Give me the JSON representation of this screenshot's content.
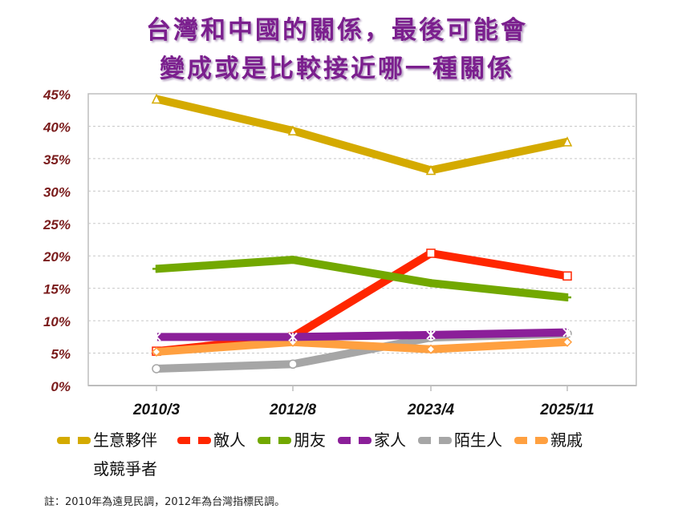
{
  "chart_data": {
    "type": "line",
    "title_line1": "台灣和中國的關係，最後可能會",
    "title_line2": "變成或是比較接近哪一種關係",
    "categories": [
      "2010/3",
      "2012/8",
      "2023/4",
      "2025/11"
    ],
    "ylim": [
      0,
      45
    ],
    "yticks": [
      "0%",
      "5%",
      "10%",
      "15%",
      "20%",
      "25%",
      "30%",
      "35%",
      "40%",
      "45%"
    ],
    "grid": true,
    "legend_position": "bottom",
    "series": [
      {
        "name": "生意夥伴或競爭者",
        "color": "#d4aa00",
        "marker": "triangle",
        "values": [
          44.2,
          39.3,
          33.2,
          37.6
        ]
      },
      {
        "name": "敵人",
        "color": "#ff2600",
        "marker": "square",
        "values": [
          5.3,
          7.5,
          20.4,
          16.9
        ]
      },
      {
        "name": "朋友",
        "color": "#72a800",
        "marker": "plus",
        "values": [
          18.0,
          19.4,
          15.8,
          13.6
        ]
      },
      {
        "name": "家人",
        "color": "#8b1f99",
        "marker": "x",
        "values": [
          7.5,
          7.5,
          7.8,
          8.2
        ]
      },
      {
        "name": "陌生人",
        "color": "#a6a6a6",
        "marker": "circle",
        "values": [
          2.6,
          3.3,
          7.4,
          8.0
        ]
      },
      {
        "name": "親戚",
        "color": "#ffa040",
        "marker": "diamond",
        "values": [
          5.2,
          6.7,
          5.6,
          6.7
        ]
      }
    ],
    "note": "註：2010年為遠見民調，2012年為台灣指標民調。"
  }
}
